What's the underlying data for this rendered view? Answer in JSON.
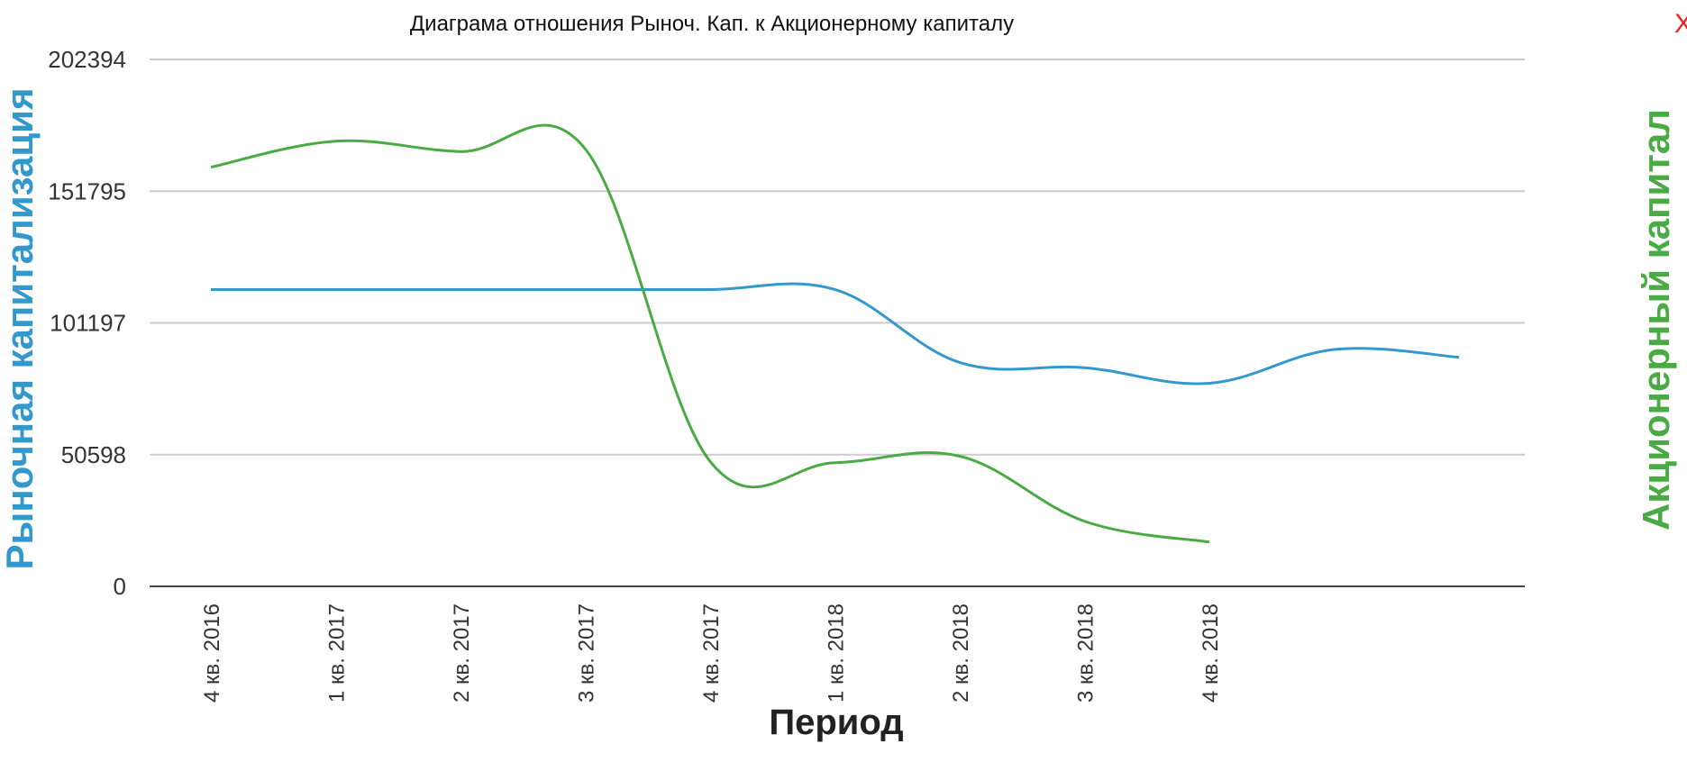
{
  "close_label": "X",
  "colors": {
    "market_cap": "#3399cc",
    "equity": "#4aab44",
    "close": "#ee2222",
    "grid": "#cccccc",
    "axis": "#444444"
  },
  "chart_data": {
    "type": "line",
    "title": "Диаграма отношения Рыноч. Кап. к Акционерному капиталу",
    "xlabel": "Период",
    "ylabel_left": "Рыночная капитализация",
    "ylabel_right": "Акционерный капитал",
    "categories": [
      "4 кв. 2016",
      "1 кв. 2017",
      "2 кв. 2017",
      "3 кв. 2017",
      "4 кв. 2017",
      "1 кв. 2018",
      "2 кв. 2018",
      "3 кв. 2018",
      "4 кв. 2018",
      "",
      ""
    ],
    "yticks": [
      0,
      50598,
      101197,
      151795,
      202394
    ],
    "ylim": [
      0,
      202394
    ],
    "grid": true,
    "legend": "none",
    "series": [
      {
        "key": "market_cap",
        "values": [
          114000,
          114000,
          114000,
          114000,
          114000,
          114000,
          86000,
          84000,
          78000,
          91000,
          88000
        ]
      },
      {
        "key": "equity",
        "values": [
          161000,
          171000,
          167000,
          168000,
          48000,
          47500,
          50000,
          25000,
          17000,
          null,
          null
        ]
      }
    ]
  }
}
